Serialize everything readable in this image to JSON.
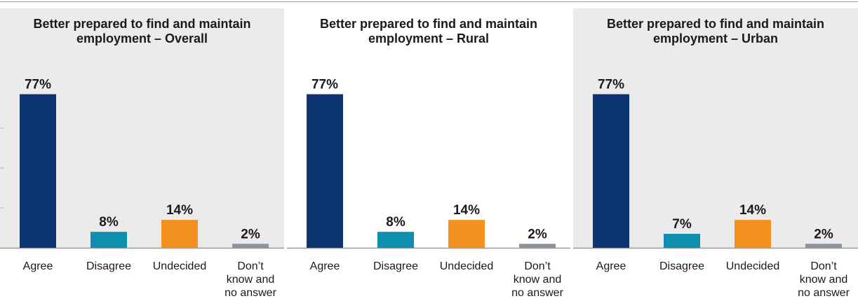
{
  "colors": {
    "agree": "#0d3570",
    "disagree": "#0f8fb0",
    "undecided": "#f5921f",
    "dont_know": "#8a939e",
    "panel_shaded": "#ebebeb",
    "panel_plain": "#ffffff"
  },
  "chart_data": [
    {
      "type": "bar",
      "title": "Better prepared to find and maintain employment – Overall",
      "categories": [
        "Agree",
        "Disagree",
        "Undecided",
        "Don’t know and no answer"
      ],
      "values": [
        77,
        8,
        14,
        2
      ],
      "value_labels": [
        "77%",
        "8%",
        "14%",
        "2%"
      ],
      "ylim": [
        0,
        80
      ],
      "grid": true,
      "shaded": true
    },
    {
      "type": "bar",
      "title": "Better prepared to find and maintain employment – Rural",
      "categories": [
        "Agree",
        "Disagree",
        "Undecided",
        "Don’t know and no answer"
      ],
      "values": [
        77,
        8,
        14,
        2
      ],
      "value_labels": [
        "77%",
        "8%",
        "14%",
        "2%"
      ],
      "ylim": [
        0,
        80
      ],
      "grid": false,
      "shaded": false
    },
    {
      "type": "bar",
      "title": "Better prepared to find and maintain employment – Urban",
      "categories": [
        "Agree",
        "Disagree",
        "Undecided",
        "Don’t know and no answer"
      ],
      "values": [
        77,
        7,
        14,
        2
      ],
      "value_labels": [
        "77%",
        "7%",
        "14%",
        "2%"
      ],
      "ylim": [
        0,
        80
      ],
      "grid": false,
      "shaded": true
    }
  ]
}
